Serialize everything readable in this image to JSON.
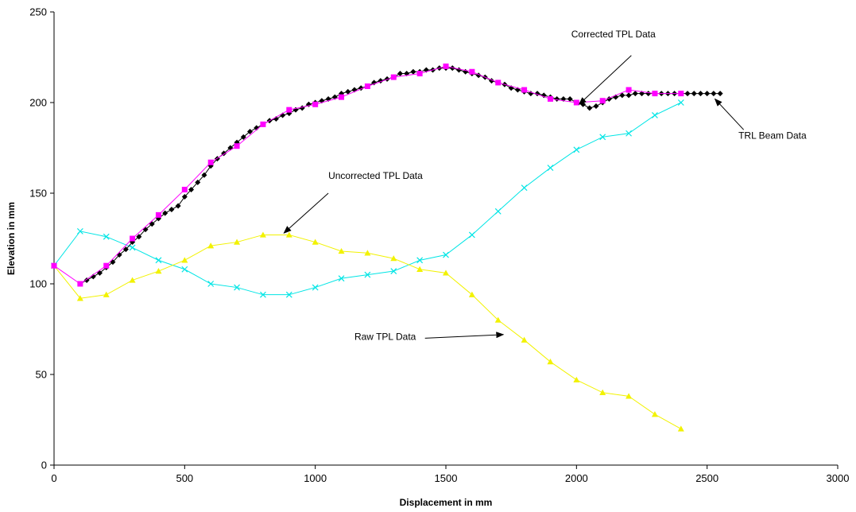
{
  "chart_data": {
    "type": "line",
    "title": "",
    "xlabel": "Displacement in mm",
    "ylabel": "Elevation in mm",
    "xlim": [
      0,
      3000
    ],
    "ylim": [
      0,
      250
    ],
    "x_ticks": [
      "0",
      "500",
      "1000",
      "1500",
      "2000",
      "2500",
      "3000"
    ],
    "y_ticks": [
      "0",
      "50",
      "100",
      "150",
      "200",
      "250"
    ],
    "grid": false,
    "legend": "none",
    "series": [
      {
        "name": "TRL Beam Data",
        "color": "#000000",
        "marker": "diamond",
        "x": [
          100,
          125,
          150,
          175,
          200,
          225,
          250,
          275,
          300,
          325,
          350,
          375,
          400,
          425,
          450,
          475,
          500,
          525,
          550,
          575,
          600,
          625,
          650,
          675,
          700,
          725,
          750,
          775,
          800,
          825,
          850,
          875,
          900,
          925,
          950,
          975,
          1000,
          1025,
          1050,
          1075,
          1100,
          1125,
          1150,
          1175,
          1200,
          1225,
          1250,
          1275,
          1300,
          1325,
          1350,
          1375,
          1400,
          1425,
          1450,
          1475,
          1500,
          1525,
          1550,
          1575,
          1600,
          1625,
          1650,
          1675,
          1700,
          1725,
          1750,
          1775,
          1800,
          1825,
          1850,
          1875,
          1900,
          1925,
          1950,
          1975,
          2000,
          2025,
          2050,
          2075,
          2100,
          2125,
          2150,
          2175,
          2200,
          2225,
          2250,
          2275,
          2300,
          2325,
          2350,
          2375,
          2400,
          2425,
          2450,
          2475,
          2500,
          2525,
          2550
        ],
        "y": [
          100,
          102,
          104,
          106,
          109,
          112,
          116,
          119,
          123,
          126,
          130,
          133,
          136,
          139,
          141,
          143,
          148,
          152,
          156,
          160,
          165,
          169,
          172,
          175,
          178,
          181,
          184,
          186,
          188,
          190,
          191,
          193,
          194,
          196,
          197,
          199,
          200,
          201,
          202,
          203,
          205,
          206,
          207,
          208,
          209,
          211,
          212,
          213,
          214,
          216,
          216,
          217,
          217,
          218,
          218,
          219,
          219,
          219,
          218,
          217,
          216,
          215,
          214,
          212,
          211,
          210,
          208,
          207,
          206,
          205,
          205,
          204,
          203,
          202,
          202,
          202,
          200,
          199,
          197,
          198,
          200,
          202,
          203,
          204,
          204,
          205,
          205,
          205,
          205,
          205,
          205,
          205,
          205,
          205,
          205,
          205,
          205,
          205,
          205
        ]
      },
      {
        "name": "Corrected TPL Data",
        "color": "#ff00ff",
        "marker": "square",
        "x": [
          0,
          100,
          200,
          300,
          400,
          500,
          600,
          700,
          800,
          900,
          1000,
          1100,
          1200,
          1300,
          1400,
          1500,
          1600,
          1700,
          1800,
          1900,
          2000,
          2100,
          2200,
          2300,
          2400
        ],
        "y": [
          110,
          100,
          110,
          125,
          138,
          152,
          167,
          176,
          188,
          196,
          199,
          203,
          209,
          214,
          216,
          220,
          217,
          211,
          207,
          202,
          200,
          201,
          207,
          205,
          205
        ]
      },
      {
        "name": "Uncorrected TPL Data",
        "color": "#00e5e5",
        "marker": "x",
        "x": [
          0,
          100,
          200,
          300,
          400,
          500,
          600,
          700,
          800,
          900,
          1000,
          1100,
          1200,
          1300,
          1400,
          1500,
          1600,
          1700,
          1800,
          1900,
          2000,
          2100,
          2200,
          2300,
          2400
        ],
        "y": [
          110,
          129,
          126,
          120,
          113,
          108,
          100,
          98,
          94,
          94,
          98,
          103,
          105,
          107,
          113,
          116,
          127,
          140,
          153,
          164,
          174,
          181,
          183,
          193,
          200
        ]
      },
      {
        "name": "Raw TPL Data",
        "color": "#f2f200",
        "marker": "triangle",
        "x": [
          0,
          100,
          200,
          300,
          400,
          500,
          600,
          700,
          800,
          900,
          1000,
          1100,
          1200,
          1300,
          1400,
          1500,
          1600,
          1700,
          1800,
          1900,
          2000,
          2100,
          2200,
          2300,
          2400
        ],
        "y": [
          110,
          92,
          94,
          102,
          107,
          113,
          121,
          123,
          127,
          127,
          123,
          118,
          117,
          114,
          108,
          106,
          94,
          80,
          69,
          57,
          47,
          40,
          38,
          28,
          20
        ]
      }
    ],
    "annotations": [
      {
        "text": "Corrected TPL Data",
        "text_x": 1980,
        "text_y": 236,
        "arrow_from": [
          2210,
          226
        ],
        "arrow_to": [
          2010,
          199
        ]
      },
      {
        "text": "TRL Beam Data",
        "text_x": 2620,
        "text_y": 180,
        "arrow_from": [
          2640,
          185
        ],
        "arrow_to": [
          2530,
          202
        ]
      },
      {
        "text": "Uncorrected TPL Data",
        "text_x": 1050,
        "text_y": 158,
        "arrow_from": [
          1050,
          150
        ],
        "arrow_to": [
          880,
          128
        ]
      },
      {
        "text": "Raw TPL Data",
        "text_x": 1150,
        "text_y": 69,
        "arrow_from": [
          1420,
          70
        ],
        "arrow_to": [
          1720,
          72
        ]
      }
    ]
  }
}
